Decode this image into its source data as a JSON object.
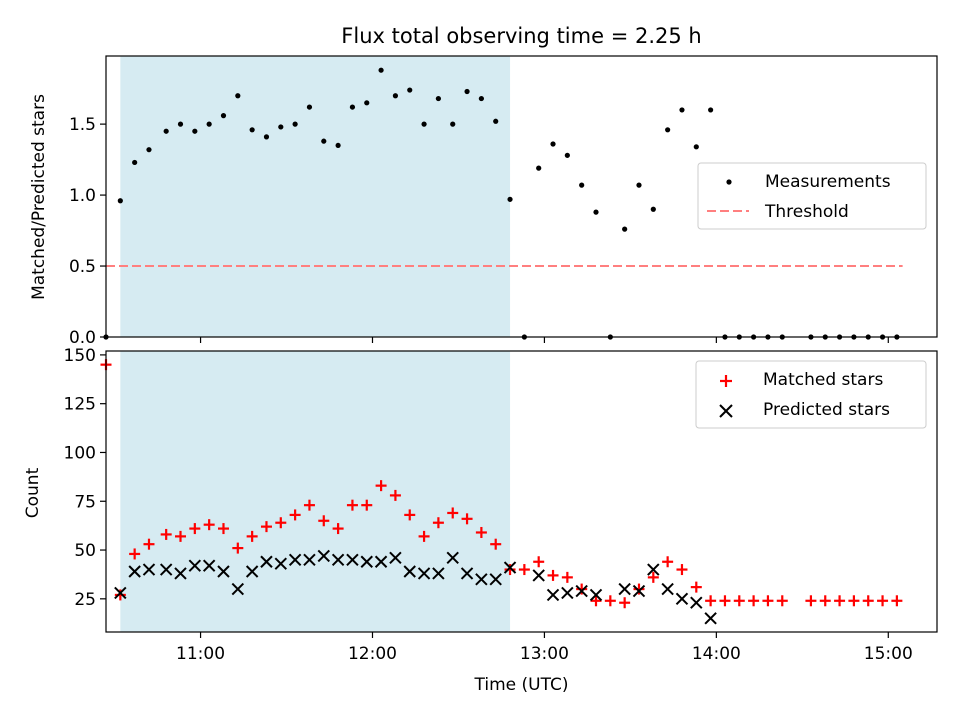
{
  "chart_data": [
    {
      "type": "scatter",
      "title": "Flux total observing time = 2.25 h",
      "ylabel": "Matched/Predicted stars",
      "xlim": [
        "10:27",
        "15:17"
      ],
      "ylim": [
        0,
        1.98
      ],
      "yticks": [
        0.0,
        0.5,
        1.0,
        1.5
      ],
      "ytick_labels": [
        "0.0",
        "0.5",
        "1.0",
        "1.5"
      ],
      "shaded_interval": [
        "10:32",
        "12:48"
      ],
      "shade_color": "#add8e6",
      "legend": {
        "placement": "center-right",
        "entries": [
          "Measurements",
          "Threshold"
        ]
      },
      "threshold": {
        "name": "Threshold",
        "value": 0.5,
        "x_range": [
          "10:27",
          "15:05"
        ],
        "color": "#ff7f7f"
      },
      "series": [
        {
          "name": "Measurements",
          "color": "#000000",
          "marker": "dot",
          "points": [
            [
              "10:27",
              0.0
            ],
            [
              "10:32",
              0.96
            ],
            [
              "10:37",
              1.23
            ],
            [
              "10:42",
              1.32
            ],
            [
              "10:48",
              1.45
            ],
            [
              "10:53",
              1.5
            ],
            [
              "10:58",
              1.45
            ],
            [
              "11:03",
              1.5
            ],
            [
              "11:08",
              1.56
            ],
            [
              "11:13",
              1.7
            ],
            [
              "11:18",
              1.46
            ],
            [
              "11:23",
              1.41
            ],
            [
              "11:28",
              1.48
            ],
            [
              "11:33",
              1.5
            ],
            [
              "11:38",
              1.62
            ],
            [
              "11:43",
              1.38
            ],
            [
              "11:48",
              1.35
            ],
            [
              "11:53",
              1.62
            ],
            [
              "11:58",
              1.65
            ],
            [
              "12:03",
              1.88
            ],
            [
              "12:08",
              1.7
            ],
            [
              "12:13",
              1.74
            ],
            [
              "12:18",
              1.5
            ],
            [
              "12:23",
              1.68
            ],
            [
              "12:28",
              1.5
            ],
            [
              "12:33",
              1.73
            ],
            [
              "12:38",
              1.68
            ],
            [
              "12:43",
              1.52
            ],
            [
              "12:48",
              0.97
            ],
            [
              "12:53",
              0.0
            ],
            [
              "12:58",
              1.19
            ],
            [
              "13:03",
              1.36
            ],
            [
              "13:08",
              1.28
            ],
            [
              "13:13",
              1.07
            ],
            [
              "13:18",
              0.88
            ],
            [
              "13:23",
              0.0
            ],
            [
              "13:28",
              0.76
            ],
            [
              "13:33",
              1.07
            ],
            [
              "13:38",
              0.9
            ],
            [
              "13:43",
              1.46
            ],
            [
              "13:48",
              1.6
            ],
            [
              "13:53",
              1.34
            ],
            [
              "13:58",
              1.6
            ],
            [
              "14:03",
              0.0
            ],
            [
              "14:08",
              0.0
            ],
            [
              "14:13",
              0.0
            ],
            [
              "14:18",
              0.0
            ],
            [
              "14:23",
              0.0
            ],
            [
              "14:33",
              0.0
            ],
            [
              "14:38",
              0.0
            ],
            [
              "14:43",
              0.0
            ],
            [
              "14:48",
              0.0
            ],
            [
              "14:53",
              0.0
            ],
            [
              "14:58",
              0.0
            ],
            [
              "15:03",
              0.0
            ]
          ]
        }
      ]
    },
    {
      "type": "scatter",
      "xlabel": "Time (UTC)",
      "ylabel": "Count",
      "xlim": [
        "10:27",
        "15:17"
      ],
      "ylim": [
        8,
        152
      ],
      "xticks": [
        "11:00",
        "12:00",
        "13:00",
        "14:00",
        "15:00"
      ],
      "xtick_labels": [
        "11:00",
        "12:00",
        "13:00",
        "14:00",
        "15:00"
      ],
      "yticks": [
        25,
        50,
        75,
        100,
        125,
        150
      ],
      "ytick_labels": [
        "25",
        "50",
        "75",
        "100",
        "125",
        "150"
      ],
      "shaded_interval": [
        "10:32",
        "12:48"
      ],
      "shade_color": "#add8e6",
      "legend": {
        "placement": "top-right",
        "entries": [
          "Matched stars",
          "Predicted stars"
        ]
      },
      "series": [
        {
          "name": "Matched stars",
          "color": "#ff0000",
          "marker": "plus",
          "points": [
            [
              "10:27",
              145
            ],
            [
              "10:32",
              27
            ],
            [
              "10:37",
              48
            ],
            [
              "10:42",
              53
            ],
            [
              "10:48",
              58
            ],
            [
              "10:53",
              57
            ],
            [
              "10:58",
              61
            ],
            [
              "11:03",
              63
            ],
            [
              "11:08",
              61
            ],
            [
              "11:13",
              51
            ],
            [
              "11:18",
              57
            ],
            [
              "11:23",
              62
            ],
            [
              "11:28",
              64
            ],
            [
              "11:33",
              68
            ],
            [
              "11:38",
              73
            ],
            [
              "11:43",
              65
            ],
            [
              "11:48",
              61
            ],
            [
              "11:53",
              73
            ],
            [
              "11:58",
              73
            ],
            [
              "12:03",
              83
            ],
            [
              "12:08",
              78
            ],
            [
              "12:13",
              68
            ],
            [
              "12:18",
              57
            ],
            [
              "12:23",
              64
            ],
            [
              "12:28",
              69
            ],
            [
              "12:33",
              66
            ],
            [
              "12:38",
              59
            ],
            [
              "12:43",
              53
            ],
            [
              "12:48",
              40
            ],
            [
              "12:53",
              40
            ],
            [
              "12:58",
              44
            ],
            [
              "13:03",
              37
            ],
            [
              "13:08",
              36
            ],
            [
              "13:13",
              30
            ],
            [
              "13:18",
              24
            ],
            [
              "13:23",
              24
            ],
            [
              "13:28",
              23
            ],
            [
              "13:33",
              30
            ],
            [
              "13:38",
              36
            ],
            [
              "13:43",
              44
            ],
            [
              "13:48",
              40
            ],
            [
              "13:53",
              31
            ],
            [
              "13:58",
              24
            ],
            [
              "14:03",
              24
            ],
            [
              "14:08",
              24
            ],
            [
              "14:13",
              24
            ],
            [
              "14:18",
              24
            ],
            [
              "14:23",
              24
            ],
            [
              "14:33",
              24
            ],
            [
              "14:38",
              24
            ],
            [
              "14:43",
              24
            ],
            [
              "14:48",
              24
            ],
            [
              "14:53",
              24
            ],
            [
              "14:58",
              24
            ],
            [
              "15:03",
              24
            ]
          ]
        },
        {
          "name": "Predicted stars",
          "color": "#000000",
          "marker": "x",
          "points": [
            [
              "10:32",
              28
            ],
            [
              "10:37",
              39
            ],
            [
              "10:42",
              40
            ],
            [
              "10:48",
              40
            ],
            [
              "10:53",
              38
            ],
            [
              "10:58",
              42
            ],
            [
              "11:03",
              42
            ],
            [
              "11:08",
              39
            ],
            [
              "11:13",
              30
            ],
            [
              "11:18",
              39
            ],
            [
              "11:23",
              44
            ],
            [
              "11:28",
              43
            ],
            [
              "11:33",
              45
            ],
            [
              "11:38",
              45
            ],
            [
              "11:43",
              47
            ],
            [
              "11:48",
              45
            ],
            [
              "11:53",
              45
            ],
            [
              "11:58",
              44
            ],
            [
              "12:03",
              44
            ],
            [
              "12:08",
              46
            ],
            [
              "12:13",
              39
            ],
            [
              "12:18",
              38
            ],
            [
              "12:23",
              38
            ],
            [
              "12:28",
              46
            ],
            [
              "12:33",
              38
            ],
            [
              "12:38",
              35
            ],
            [
              "12:43",
              35
            ],
            [
              "12:48",
              41
            ],
            [
              "12:58",
              37
            ],
            [
              "13:03",
              27
            ],
            [
              "13:08",
              28
            ],
            [
              "13:13",
              29
            ],
            [
              "13:18",
              27
            ],
            [
              "13:28",
              30
            ],
            [
              "13:33",
              29
            ],
            [
              "13:38",
              40
            ],
            [
              "13:43",
              30
            ],
            [
              "13:48",
              25
            ],
            [
              "13:53",
              23
            ],
            [
              "13:58",
              15
            ]
          ]
        }
      ]
    }
  ]
}
